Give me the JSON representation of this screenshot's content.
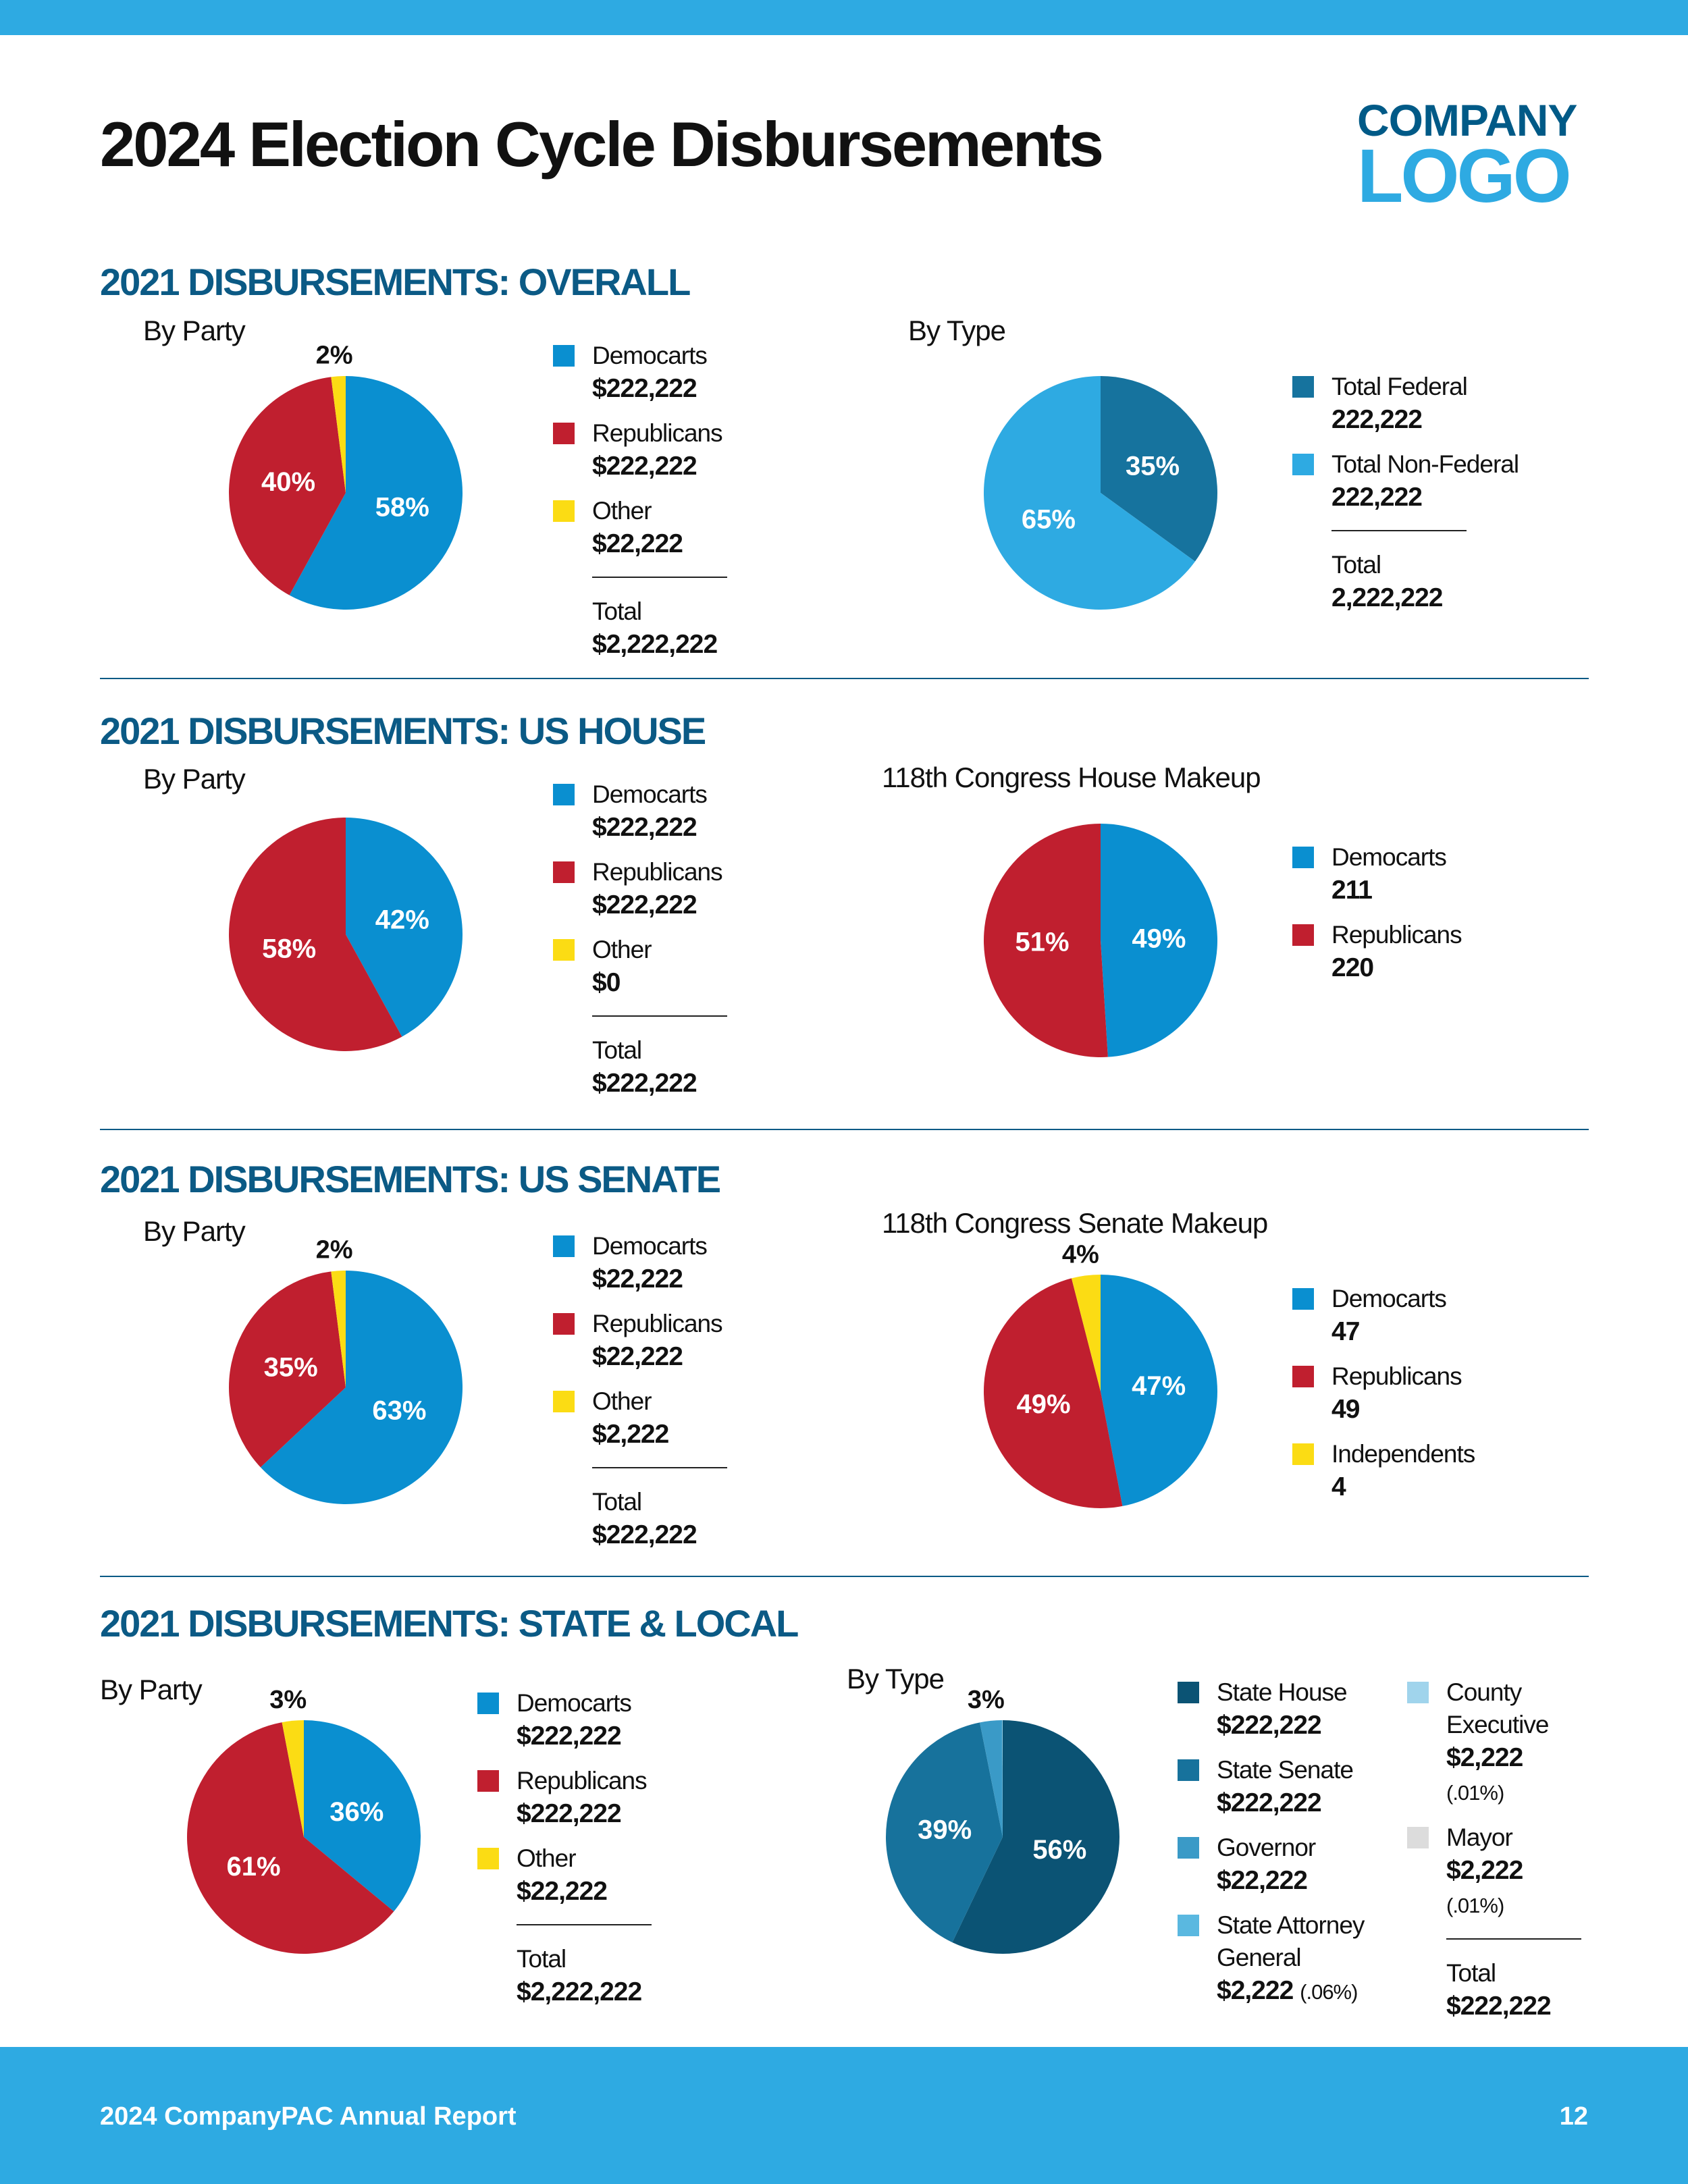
{
  "header": {
    "title": "2024 Election Cycle Disbursements",
    "logo": {
      "line1": "COMPANY",
      "line2": "LOGO"
    }
  },
  "sections": [
    {
      "heading": "2021 DISBURSEMENTS: OVERALL"
    },
    {
      "heading": "2021 DISBURSEMENTS: US HOUSE"
    },
    {
      "heading": "2021 DISBURSEMENTS: US SENATE"
    },
    {
      "heading": "2021 DISBURSEMENTS: STATE & LOCAL"
    }
  ],
  "footer": {
    "report": "2024 CompanyPAC Annual Report",
    "page": "12"
  },
  "colors": {
    "accent": "#2eaae2",
    "heading": "#0b5a85",
    "democrats": "#0a8fd0",
    "republicans": "#c01f2f",
    "other": "#fbdc14"
  },
  "chart_data": [
    {
      "type": "pie",
      "title": "By Party",
      "slices": [
        {
          "label": "Democarts",
          "amount": "$222,222",
          "percent": 58,
          "percent_label": "58%",
          "color": "#0a8fd0"
        },
        {
          "label": "Republicans",
          "amount": "$222,222",
          "percent": 40,
          "percent_label": "40%",
          "color": "#c01f2f"
        },
        {
          "label": "Other",
          "amount": "$22,222",
          "percent": 2,
          "percent_label": "2%",
          "color": "#fbdc14"
        }
      ],
      "total": {
        "label": "Total",
        "amount": "$2,222,222"
      }
    },
    {
      "type": "pie",
      "title": "By Type",
      "slices": [
        {
          "label": "Total Federal",
          "amount": "222,222",
          "percent": 35,
          "percent_label": "35%",
          "color": "#16739e"
        },
        {
          "label": "Total Non-Federal",
          "amount": "222,222",
          "percent": 65,
          "percent_label": "65%",
          "color": "#2eaae2"
        }
      ],
      "total": {
        "label": "Total",
        "amount": "2,222,222"
      }
    },
    {
      "type": "pie",
      "title": "By Party",
      "slices": [
        {
          "label": "Democarts",
          "amount": "$222,222",
          "percent": 42,
          "percent_label": "42%",
          "color": "#0a8fd0"
        },
        {
          "label": "Republicans",
          "amount": "$222,222",
          "percent": 58,
          "percent_label": "58%",
          "color": "#c01f2f"
        },
        {
          "label": "Other",
          "amount": "$0",
          "percent": 0,
          "color": "#fbdc14"
        }
      ],
      "total": {
        "label": "Total",
        "amount": "$222,222"
      }
    },
    {
      "type": "pie",
      "title": "118th Congress House Makeup",
      "slices": [
        {
          "label": "Democarts",
          "amount": "211",
          "percent": 49,
          "percent_label": "49%",
          "color": "#0a8fd0"
        },
        {
          "label": "Republicans",
          "amount": "220",
          "percent": 51,
          "percent_label": "51%",
          "color": "#c01f2f"
        }
      ]
    },
    {
      "type": "pie",
      "title": "By Party",
      "slices": [
        {
          "label": "Democarts",
          "amount": "$22,222",
          "percent": 63,
          "percent_label": "63%",
          "color": "#0a8fd0"
        },
        {
          "label": "Republicans",
          "amount": "$22,222",
          "percent": 35,
          "percent_label": "35%",
          "color": "#c01f2f"
        },
        {
          "label": "Other",
          "amount": "$2,222",
          "percent": 2,
          "percent_label": "2%",
          "color": "#fbdc14"
        }
      ],
      "total": {
        "label": "Total",
        "amount": "$222,222"
      }
    },
    {
      "type": "pie",
      "title": "118th Congress Senate Makeup",
      "slices": [
        {
          "label": "Democarts",
          "amount": "47",
          "percent": 47,
          "percent_label": "47%",
          "color": "#0a8fd0"
        },
        {
          "label": "Republicans",
          "amount": "49",
          "percent": 49,
          "percent_label": "49%",
          "color": "#c01f2f"
        },
        {
          "label": "Independents",
          "amount": "4",
          "percent": 4,
          "percent_label": "4%",
          "color": "#fbdc14"
        }
      ]
    },
    {
      "type": "pie",
      "title": "By Party",
      "slices": [
        {
          "label": "Democarts",
          "amount": "$222,222",
          "percent": 36,
          "percent_label": "36%",
          "color": "#0a8fd0"
        },
        {
          "label": "Republicans",
          "amount": "$222,222",
          "percent": 61,
          "percent_label": "61%",
          "color": "#c01f2f"
        },
        {
          "label": "Other",
          "amount": "$22,222",
          "percent": 3,
          "percent_label": "3%",
          "color": "#fbdc14"
        }
      ],
      "total": {
        "label": "Total",
        "amount": "$2,222,222"
      }
    },
    {
      "type": "pie",
      "title": "By Type",
      "slices": [
        {
          "label": "State House",
          "amount": "$222,222",
          "percent": 56,
          "percent_label": "56%",
          "color": "#0b5374"
        },
        {
          "label": "State Senate",
          "amount": "$222,222",
          "percent": 39,
          "percent_label": "39%",
          "color": "#17729c"
        },
        {
          "label": "Governor",
          "amount": "$22,222",
          "percent": 3,
          "percent_label": "3%",
          "color": "#3a9ac7"
        },
        {
          "label": "State Attorney General",
          "amount": "$2,222",
          "note": "(.06%)",
          "percent": 0.06,
          "color": "#5ab8e0"
        },
        {
          "label": "County Executive",
          "amount": "$2,222",
          "note": "(.01%)",
          "percent": 0.01,
          "color": "#a0d4ec"
        },
        {
          "label": "Mayor",
          "amount": "$2,222",
          "note": "(.01%)",
          "percent": 0.01,
          "color": "#dcdcdc"
        }
      ],
      "total": {
        "label": "Total",
        "amount": "$222,222"
      }
    }
  ]
}
